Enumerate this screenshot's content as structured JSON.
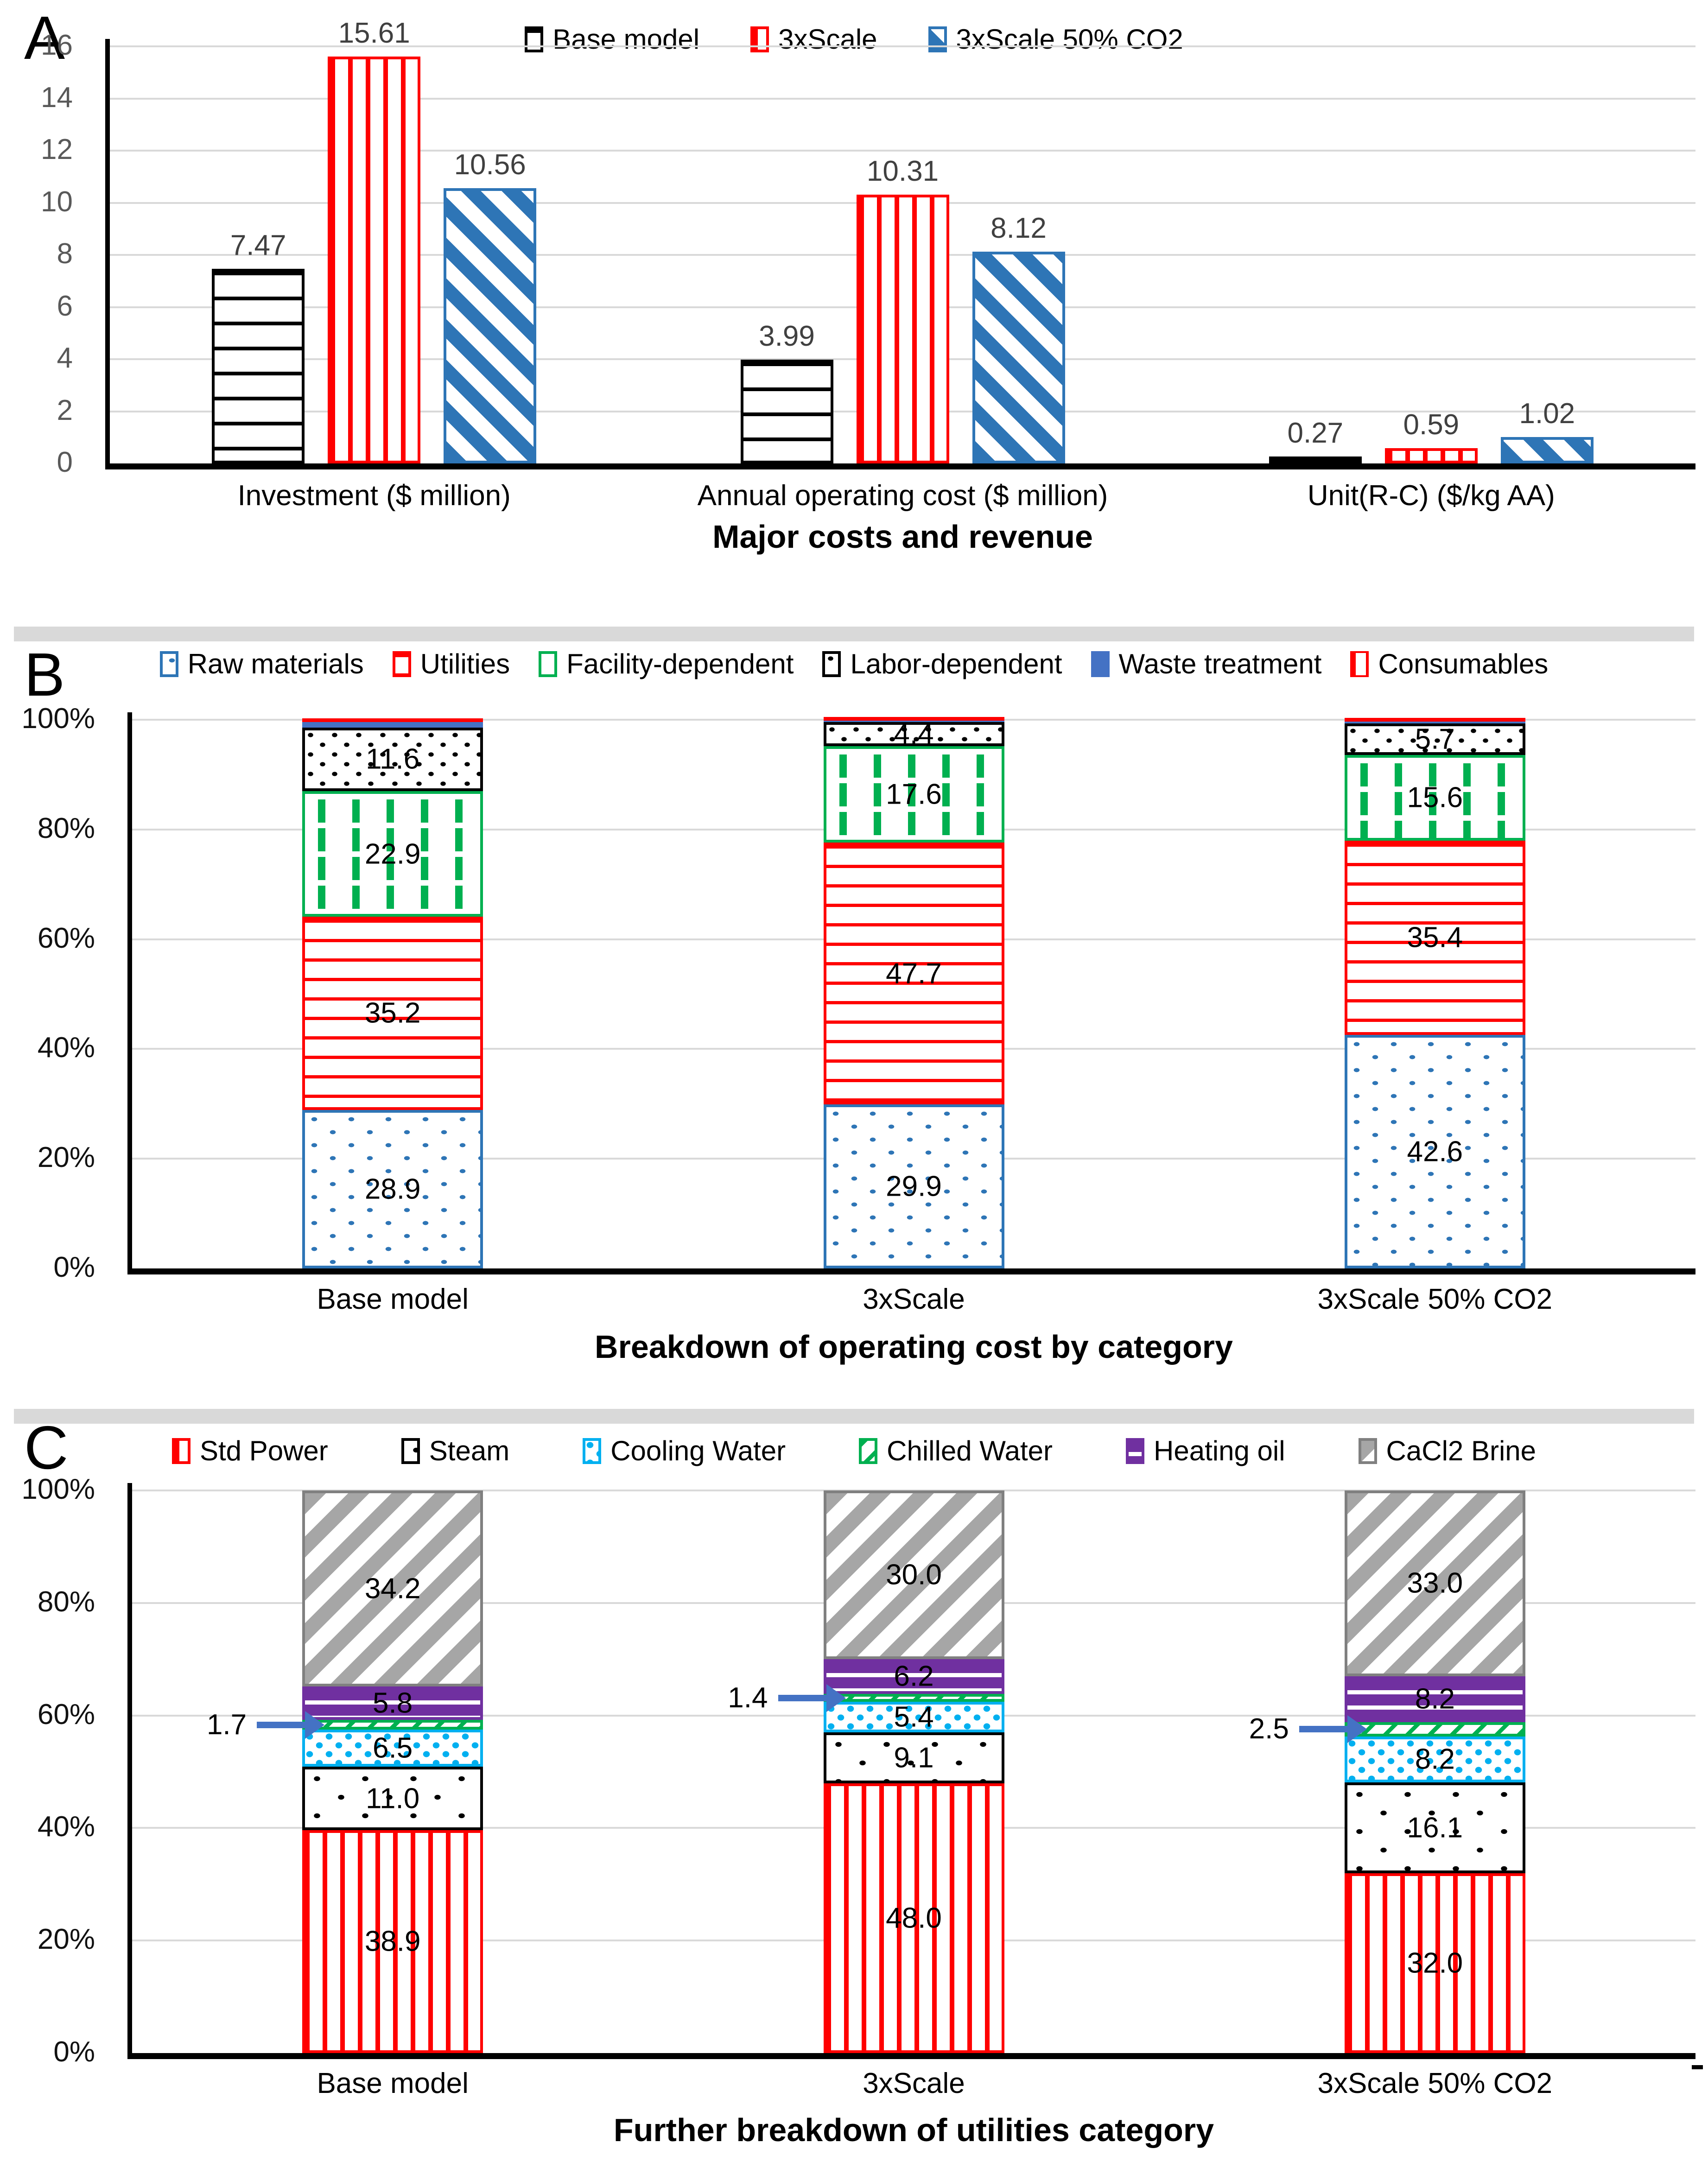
{
  "colors": {
    "red": "#FF0000",
    "blue": "#2E75B6",
    "waste_blue": "#4472C4",
    "cyan": "#00B0F0",
    "green": "#00B050",
    "purple": "#7030A0",
    "gray": "#A6A6A6",
    "gridline": "#D9D9D9",
    "separator": "#D9D9D9",
    "value_label": "#404040",
    "callout_arrow": "#4472C4"
  },
  "chart_data": [
    {
      "panel_letter": "A",
      "type": "bar",
      "title": "Major costs and revenue",
      "categories": [
        "Investment ($ million)",
        "Annual operating cost ($ million)",
        "Unit(R-C) ($/kg AA)"
      ],
      "series": [
        {
          "name": "Base model",
          "pattern": "black-hlines",
          "values": [
            7.47,
            3.99,
            0.27
          ]
        },
        {
          "name": "3xScale",
          "pattern": "red-vlines",
          "values": [
            15.61,
            10.31,
            0.59
          ]
        },
        {
          "name": "3xScale 50% CO2",
          "pattern": "blue-diag",
          "values": [
            10.56,
            8.12,
            1.02
          ]
        }
      ],
      "ylim": [
        0,
        16
      ],
      "yticks": [
        "0",
        "2",
        "4",
        "6",
        "8",
        "10",
        "12",
        "14",
        "16"
      ],
      "label_decimals": 2,
      "grid": true,
      "legend_position": "top-center"
    },
    {
      "panel_letter": "B",
      "type": "stacked-bar-100",
      "title": "Breakdown of operating cost by category",
      "categories": [
        "Base model",
        "3xScale",
        "3xScale 50% CO2"
      ],
      "series": [
        {
          "name": "Raw materials",
          "pattern": "blue-dots",
          "values": [
            28.9,
            29.9,
            42.6
          ],
          "show_labels": true
        },
        {
          "name": "Utilities",
          "pattern": "red-hlines",
          "values": [
            35.2,
            47.7,
            35.4
          ],
          "show_labels": true
        },
        {
          "name": "Facility-dependent",
          "pattern": "green-dashes",
          "values": [
            22.9,
            17.6,
            15.6
          ],
          "show_labels": true
        },
        {
          "name": "Labor-dependent",
          "pattern": "black-dots",
          "values": [
            11.6,
            4.4,
            5.7
          ],
          "show_labels": true
        },
        {
          "name": "Waste treatment",
          "pattern": "solid-blue",
          "values": [
            1.0,
            0.2,
            0.4
          ],
          "show_labels": false
        },
        {
          "name": "Consumables",
          "pattern": "red-vlines-thin",
          "values": [
            0.4,
            0.2,
            0.3
          ],
          "show_labels": false
        }
      ],
      "yticks": [
        "0%",
        "20%",
        "40%",
        "60%",
        "80%",
        "100%"
      ],
      "label_decimals": 1,
      "grid": true,
      "legend_position": "top"
    },
    {
      "panel_letter": "C",
      "type": "stacked-bar-100",
      "title": "Further breakdown of utilities category",
      "categories": [
        "Base model",
        "3xScale",
        "3xScale 50% CO2"
      ],
      "series": [
        {
          "name": "Std Power",
          "pattern": "red-vlines",
          "values": [
            38.9,
            48.0,
            32.0
          ],
          "show_labels": true
        },
        {
          "name": "Steam",
          "pattern": "steam-dots",
          "values": [
            11.0,
            9.1,
            16.1
          ],
          "show_labels": true
        },
        {
          "name": "Cooling Water",
          "pattern": "cyan-dots",
          "values": [
            6.5,
            5.4,
            8.2
          ],
          "show_labels": true
        },
        {
          "name": "Chilled Water",
          "pattern": "green-diag",
          "values": [
            1.7,
            1.4,
            2.5
          ],
          "show_labels": false,
          "callout": true
        },
        {
          "name": "Heating oil",
          "pattern": "purple-hlines",
          "values": [
            5.8,
            6.2,
            8.2
          ],
          "show_labels": true
        },
        {
          "name": "CaCl2 Brine",
          "pattern": "gray-diag",
          "values": [
            34.2,
            30.0,
            33.0
          ],
          "show_labels": true
        }
      ],
      "yticks": [
        "0%",
        "20%",
        "40%",
        "60%",
        "80%",
        "100%"
      ],
      "label_decimals": 1,
      "grid": true,
      "legend_position": "top"
    }
  ]
}
